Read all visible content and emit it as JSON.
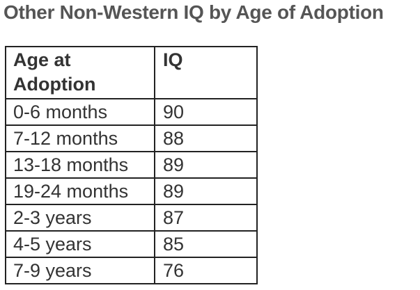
{
  "title": "Other Non-Western IQ by Age of Adoption",
  "table": {
    "headers": {
      "age_line1": "Age at",
      "age_line2": "Adoption",
      "iq": "IQ"
    },
    "rows": [
      {
        "age": "0-6 months",
        "iq": "90"
      },
      {
        "age": "7-12 months",
        "iq": "88"
      },
      {
        "age": "13-18 months",
        "iq": "89"
      },
      {
        "age": "19-24 months",
        "iq": "89"
      },
      {
        "age": "2-3 years",
        "iq": "87"
      },
      {
        "age": "4-5 years",
        "iq": "85"
      },
      {
        "age": "7-9 years",
        "iq": "76"
      }
    ]
  }
}
